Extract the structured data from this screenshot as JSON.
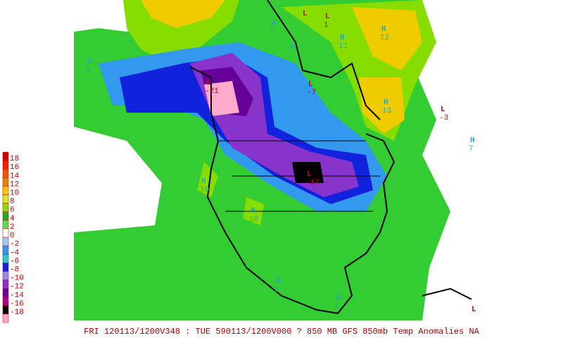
{
  "legend": [
    {
      "label": "18",
      "color": "#cc0000"
    },
    {
      "label": "16",
      "color": "#ee2200"
    },
    {
      "label": "14",
      "color": "#ee5500"
    },
    {
      "label": "12",
      "color": "#dd8800"
    },
    {
      "label": "10",
      "color": "#eecc00"
    },
    {
      "label": "8",
      "color": "#ccee22"
    },
    {
      "label": "6",
      "color": "#88dd00"
    },
    {
      "label": "4",
      "color": "#22aa22"
    },
    {
      "label": "2",
      "color": "#55dd55"
    },
    {
      "label": "0",
      "color": "#ffffff"
    },
    {
      "label": "-2",
      "color": "#99ccff"
    },
    {
      "label": "-4",
      "color": "#3399ee"
    },
    {
      "label": "-6",
      "color": "#22cccc"
    },
    {
      "label": "-8",
      "color": "#1122dd"
    },
    {
      "label": "-10",
      "color": "#9988ee"
    },
    {
      "label": "-12",
      "color": "#8833cc"
    },
    {
      "label": "-14",
      "color": "#660099"
    },
    {
      "label": "-16",
      "color": "#aa0088"
    },
    {
      "label": "-18",
      "color": "#000000"
    }
  ],
  "centers": [
    {
      "mark": "L",
      "value": null
    },
    {
      "mark": "L",
      "value": "1"
    },
    {
      "mark": "H",
      "value": "1"
    },
    {
      "mark": "H",
      "value": "11"
    },
    {
      "mark": "H",
      "value": "12"
    },
    {
      "mark": "H",
      "value": null
    },
    {
      "mark": "H",
      "value": "5"
    },
    {
      "mark": "L",
      "value": "-21"
    },
    {
      "mark": "L",
      "value": "-7"
    },
    {
      "mark": "H",
      "value": "13"
    },
    {
      "mark": "L",
      "value": "-3"
    },
    {
      "mark": "H",
      "value": "7"
    },
    {
      "mark": "H",
      "value": "10"
    },
    {
      "mark": "L",
      "value": "-17"
    },
    {
      "mark": "H",
      "value": "10"
    },
    {
      "mark": "H",
      "value": "8"
    },
    {
      "mark": "H",
      "value": "6"
    },
    {
      "mark": "L",
      "value": null
    }
  ],
  "caption": "FRI 120113/1200V348 : TUE 590113/1200V000  ? 850 MB GFS 850mb Temp Anomalies NA"
}
